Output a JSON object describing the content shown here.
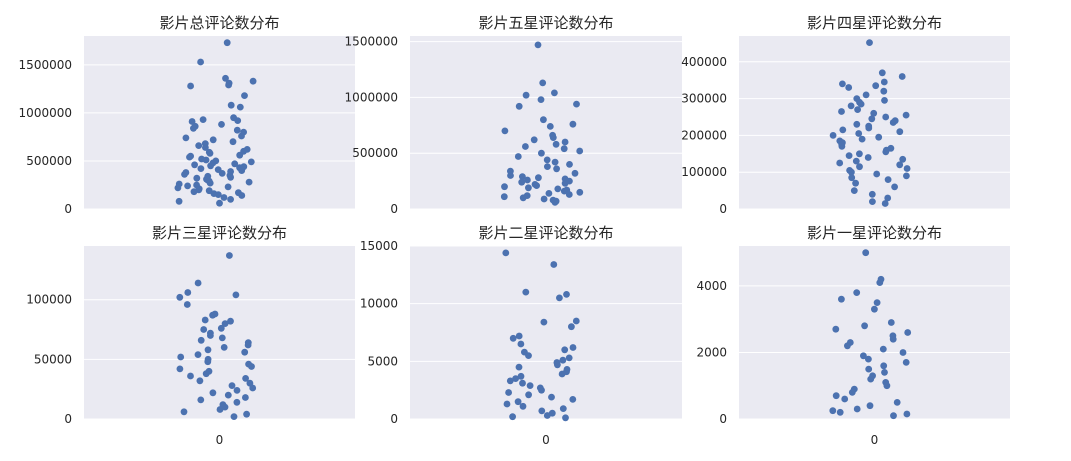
{
  "chart_data": [
    {
      "type": "scatter",
      "title": "影片总评论数分布",
      "ylim": [
        0,
        1800000
      ],
      "yticks": [
        0,
        500000,
        1000000,
        1500000
      ],
      "xticks": [],
      "grid": true,
      "color": "#4c72b0",
      "y": [
        1730000,
        1530000,
        1360000,
        1330000,
        1310000,
        1290000,
        1280000,
        1180000,
        1080000,
        1060000,
        950000,
        930000,
        920000,
        910000,
        880000,
        860000,
        840000,
        820000,
        800000,
        760000,
        740000,
        720000,
        700000,
        680000,
        660000,
        640000,
        620000,
        600000,
        590000,
        580000,
        560000,
        550000,
        540000,
        520000,
        510000,
        500000,
        490000,
        480000,
        470000,
        460000,
        450000,
        440000,
        430000,
        420000,
        410000,
        400000,
        390000,
        380000,
        370000,
        360000,
        350000,
        340000,
        330000,
        320000,
        310000,
        300000,
        290000,
        280000,
        270000,
        260000,
        250000,
        240000,
        230000,
        220000,
        210000,
        200000,
        190000,
        180000,
        170000,
        160000,
        150000,
        140000,
        120000,
        100000,
        80000,
        60000
      ]
    },
    {
      "type": "scatter",
      "title": "影片五星评论数分布",
      "ylim": [
        0,
        1550000
      ],
      "yticks": [
        0,
        500000,
        1000000,
        1500000
      ],
      "xticks": [],
      "grid": true,
      "color": "#4c72b0",
      "y": [
        1470000,
        1130000,
        1040000,
        1020000,
        980000,
        940000,
        920000,
        800000,
        760000,
        740000,
        700000,
        660000,
        640000,
        620000,
        600000,
        580000,
        560000,
        540000,
        520000,
        500000,
        470000,
        440000,
        420000,
        400000,
        380000,
        360000,
        340000,
        320000,
        300000,
        290000,
        280000,
        270000,
        260000,
        250000,
        240000,
        230000,
        220000,
        210000,
        200000,
        190000,
        180000,
        170000,
        160000,
        150000,
        140000,
        130000,
        120000,
        110000,
        100000,
        90000,
        80000,
        70000,
        60000
      ]
    },
    {
      "type": "scatter",
      "title": "影片四星评论数分布",
      "ylim": [
        0,
        470000
      ],
      "yticks": [
        0,
        100000,
        200000,
        300000,
        400000
      ],
      "xticks": [],
      "grid": true,
      "color": "#4c72b0",
      "y": [
        452000,
        370000,
        360000,
        345000,
        340000,
        335000,
        330000,
        320000,
        310000,
        300000,
        295000,
        290000,
        285000,
        280000,
        270000,
        265000,
        260000,
        255000,
        250000,
        245000,
        240000,
        235000,
        230000,
        225000,
        220000,
        215000,
        210000,
        205000,
        200000,
        195000,
        190000,
        185000,
        180000,
        175000,
        170000,
        165000,
        160000,
        155000,
        150000,
        145000,
        140000,
        135000,
        130000,
        125000,
        120000,
        115000,
        110000,
        105000,
        100000,
        95000,
        90000,
        85000,
        80000,
        70000,
        60000,
        50000,
        40000,
        30000,
        20000,
        15000
      ]
    },
    {
      "type": "scatter",
      "title": "影片三星评论数分布",
      "ylim": [
        0,
        145000
      ],
      "yticks": [
        0,
        50000,
        100000
      ],
      "xticks": [
        "0"
      ],
      "grid": true,
      "color": "#4c72b0",
      "y": [
        137000,
        114000,
        106000,
        104000,
        102000,
        96000,
        88000,
        87000,
        83000,
        82000,
        80000,
        76000,
        75000,
        72000,
        70000,
        68000,
        66000,
        64000,
        62000,
        60000,
        58000,
        56000,
        54000,
        52000,
        50000,
        48000,
        46000,
        44000,
        42000,
        40000,
        38000,
        36000,
        34000,
        32000,
        30000,
        28000,
        26000,
        24000,
        22000,
        20000,
        18000,
        16000,
        14000,
        12000,
        10000,
        8000,
        6000,
        4000,
        2000
      ]
    },
    {
      "type": "scatter",
      "title": "影片二星评论数分布",
      "ylim": [
        0,
        15000
      ],
      "yticks": [
        0,
        5000,
        10000,
        15000
      ],
      "xticks": [
        "0"
      ],
      "grid": true,
      "color": "#4c72b0",
      "y": [
        14400,
        13400,
        11000,
        10800,
        10500,
        8500,
        8400,
        8000,
        7200,
        7000,
        6500,
        6200,
        6000,
        5800,
        5500,
        5300,
        5100,
        4900,
        4700,
        4500,
        4300,
        4100,
        3900,
        3700,
        3500,
        3300,
        3100,
        2900,
        2700,
        2500,
        2300,
        2100,
        1900,
        1700,
        1500,
        1300,
        1100,
        900,
        700,
        500,
        300,
        200,
        100
      ]
    },
    {
      "type": "scatter",
      "title": "影片一星评论数分布",
      "ylim": [
        0,
        5200
      ],
      "yticks": [
        0,
        2000,
        4000
      ],
      "xticks": [
        "0"
      ],
      "grid": true,
      "color": "#4c72b0",
      "y": [
        5000,
        4200,
        4100,
        3800,
        3600,
        3500,
        3300,
        2900,
        2800,
        2700,
        2600,
        2500,
        2400,
        2300,
        2200,
        2100,
        2000,
        1900,
        1800,
        1700,
        1600,
        1500,
        1400,
        1300,
        1200,
        1100,
        1000,
        900,
        800,
        700,
        600,
        500,
        400,
        300,
        250,
        200,
        150,
        100
      ]
    }
  ]
}
